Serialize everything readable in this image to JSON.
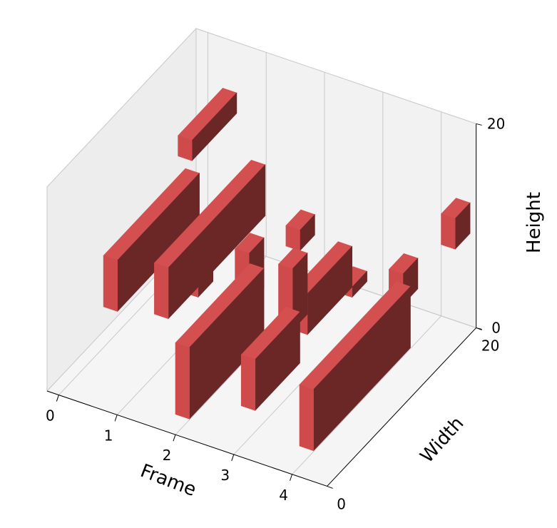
{
  "chart_data": {
    "type": "bar3d",
    "title": "",
    "xlabel": "Frame",
    "ylabel": "Width",
    "zlabel": "Height",
    "xticks": [
      "0",
      "1",
      "2",
      "3",
      "4"
    ],
    "yticks": [
      "0",
      "20"
    ],
    "zticks": [
      "0",
      "20"
    ],
    "xlim": [
      -0.2,
      4.6
    ],
    "ylim": [
      0,
      20
    ],
    "zlim": [
      0,
      20
    ],
    "grid": true,
    "colors": {
      "bar_front": "#cf4b4b",
      "bar_side": "#6b2626",
      "bar_top": "#d45050",
      "pane": "#f2f2f2",
      "grid": "#c9c9c9"
    },
    "boxes": [
      {
        "frame": 0,
        "y0": 6,
        "y1": 17,
        "z0": 4,
        "z1": 9
      },
      {
        "frame": 0,
        "y0": 16,
        "y1": 22,
        "z0": 11,
        "z1": 13
      },
      {
        "frame": 1,
        "y0": 5,
        "y1": 18,
        "z0": 6,
        "z1": 11
      },
      {
        "frame": 1,
        "y0": 9,
        "y1": 11,
        "z0": 5,
        "z1": 8
      },
      {
        "frame": 2,
        "y0": 0,
        "y1": 10,
        "z0": 2,
        "z1": 9
      },
      {
        "frame": 2,
        "y0": 8,
        "y1": 10,
        "z0": 7,
        "z1": 12
      },
      {
        "frame": 3,
        "y0": 1,
        "y1": 7,
        "z0": 4,
        "z1": 9
      },
      {
        "frame": 3,
        "y0": 6,
        "y1": 8,
        "z0": 8,
        "z1": 14
      },
      {
        "frame": 3,
        "y0": 7,
        "y1": 9,
        "z0": 15,
        "z1": 17
      },
      {
        "frame": 3,
        "y0": 8,
        "y1": 14,
        "z0": 6,
        "z1": 10
      },
      {
        "frame": 3,
        "y0": 14,
        "y1": 16,
        "z0": 5,
        "z1": 6
      },
      {
        "frame": 4,
        "y0": 1,
        "y1": 14,
        "z0": 2,
        "z1": 8
      },
      {
        "frame": 4,
        "y0": 13,
        "y1": 15,
        "z0": 7,
        "z1": 10
      },
      {
        "frame": 4,
        "y0": 20,
        "y1": 22,
        "z0": 7,
        "z1": 10
      }
    ]
  }
}
